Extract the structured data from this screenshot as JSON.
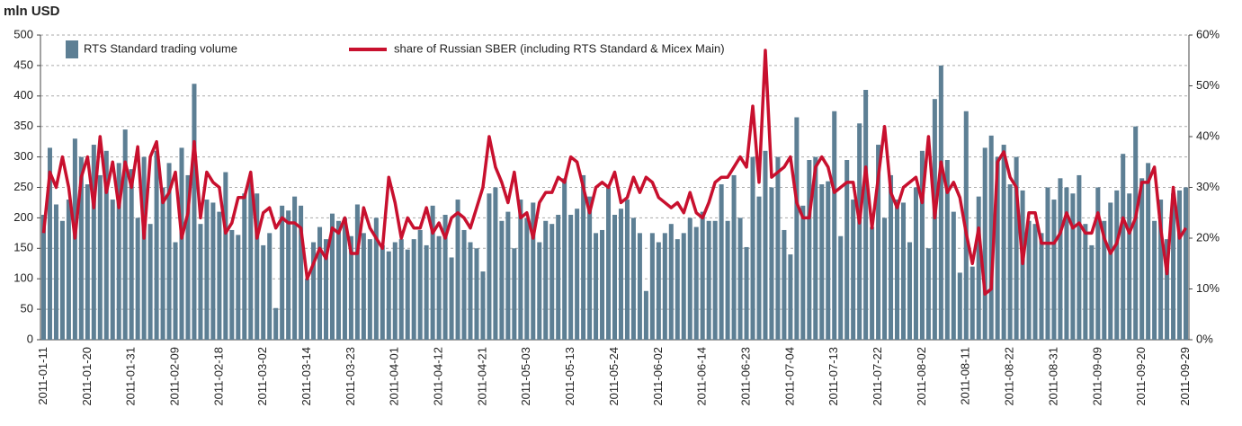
{
  "chart_data": {
    "type": "bar_line",
    "y_label": "mln USD",
    "categories": [
      "2011-01-11",
      null,
      null,
      null,
      null,
      null,
      null,
      "2011-01-20",
      null,
      null,
      null,
      null,
      null,
      null,
      "2011-01-31",
      null,
      null,
      null,
      null,
      null,
      null,
      "2011-02-09",
      null,
      null,
      null,
      null,
      null,
      null,
      "2011-02-18",
      null,
      null,
      null,
      null,
      null,
      null,
      "2011-03-02",
      null,
      null,
      null,
      null,
      null,
      null,
      "2011-03-14",
      null,
      null,
      null,
      null,
      null,
      null,
      "2011-03-23",
      null,
      null,
      null,
      null,
      null,
      null,
      "2011-04-01",
      null,
      null,
      null,
      null,
      null,
      null,
      "2011-04-12",
      null,
      null,
      null,
      null,
      null,
      null,
      "2011-04-21",
      null,
      null,
      null,
      null,
      null,
      null,
      "2011-05-03",
      null,
      null,
      null,
      null,
      null,
      null,
      "2011-05-13",
      null,
      null,
      null,
      null,
      null,
      null,
      "2011-05-24",
      null,
      null,
      null,
      null,
      null,
      null,
      "2011-06-02",
      null,
      null,
      null,
      null,
      null,
      null,
      "2011-06-14",
      null,
      null,
      null,
      null,
      null,
      null,
      "2011-06-23",
      null,
      null,
      null,
      null,
      null,
      null,
      "2011-07-04",
      null,
      null,
      null,
      null,
      null,
      null,
      "2011-07-13",
      null,
      null,
      null,
      null,
      null,
      null,
      "2011-07-22",
      null,
      null,
      null,
      null,
      null,
      null,
      "2011-08-02",
      null,
      null,
      null,
      null,
      null,
      null,
      "2011-08-11",
      null,
      null,
      null,
      null,
      null,
      null,
      "2011-08-22",
      null,
      null,
      null,
      null,
      null,
      null,
      "2011-08-31",
      null,
      null,
      null,
      null,
      null,
      null,
      "2011-09-09",
      null,
      null,
      null,
      null,
      null,
      null,
      "2011-09-20",
      null,
      null,
      null,
      null,
      null,
      null,
      "2011-09-29"
    ],
    "series": [
      {
        "name": "RTS Standard trading volume",
        "color": "#5d7f94",
        "type": "bar",
        "values": [
          205,
          315,
          222,
          195,
          230,
          330,
          300,
          255,
          320,
          270,
          310,
          230,
          290,
          345,
          280,
          200,
          300,
          190,
          310,
          250,
          290,
          160,
          315,
          270,
          420,
          190,
          230,
          225,
          210,
          275,
          180,
          172,
          240,
          262,
          240,
          155,
          175,
          52,
          220,
          212,
          235,
          220,
          100,
          160,
          185,
          165,
          207,
          195,
          200,
          170,
          222,
          175,
          165,
          200,
          155,
          145,
          160,
          165,
          148,
          165,
          180,
          155,
          220,
          170,
          205,
          135,
          230,
          180,
          160,
          150,
          112,
          240,
          250,
          195,
          210,
          150,
          230,
          200,
          225,
          160,
          195,
          190,
          205,
          265,
          205,
          215,
          270,
          235,
          175,
          180,
          250,
          205,
          215,
          230,
          200,
          175,
          80,
          175,
          160,
          175,
          190,
          165,
          175,
          200,
          185,
          210,
          195,
          195,
          255,
          195,
          270,
          200,
          152,
          300,
          235,
          310,
          250,
          300,
          180,
          140,
          365,
          220,
          295,
          300,
          255,
          260,
          375,
          170,
          295,
          230,
          355,
          410,
          185,
          320,
          200,
          270,
          230,
          225,
          160,
          250,
          310,
          150,
          395,
          450,
          295,
          210,
          110,
          375,
          120,
          235,
          315,
          335,
          300,
          320,
          255,
          300,
          245,
          195,
          190,
          175,
          250,
          230,
          265,
          250,
          240,
          270,
          190,
          155,
          250,
          195,
          225,
          245,
          305,
          240,
          350,
          265,
          290,
          195,
          230,
          165,
          240,
          245,
          250
        ]
      },
      {
        "name": "share of Russian SBER (including RTS Standard & Micex Main)",
        "color": "#c8102e",
        "type": "line",
        "axis": "y2",
        "values": [
          21,
          33,
          30,
          36,
          30,
          20,
          32,
          36,
          26,
          40,
          29,
          35,
          26,
          35,
          30,
          38,
          20,
          36,
          39,
          27,
          29,
          33,
          20,
          25,
          39,
          24,
          33,
          31,
          30,
          21,
          23,
          28,
          28,
          33,
          20,
          25,
          26,
          22,
          24,
          23,
          23,
          22,
          12,
          15,
          18,
          16,
          22,
          21,
          24,
          17,
          17,
          26,
          22,
          20,
          18,
          32,
          27,
          20,
          24,
          22,
          22,
          26,
          21,
          23,
          20,
          24,
          25,
          24,
          22,
          26,
          30,
          40,
          34,
          31,
          27,
          33,
          24,
          25,
          20,
          27,
          29,
          29,
          32,
          31,
          36,
          35,
          30,
          25,
          30,
          31,
          30,
          33,
          27,
          28,
          32,
          29,
          32,
          31,
          28,
          27,
          26,
          27,
          25,
          29,
          25,
          24,
          27,
          31,
          32,
          32,
          34,
          36,
          34,
          46,
          31,
          57,
          32,
          33,
          34,
          36,
          27,
          24,
          24,
          34,
          36,
          34,
          29,
          30,
          31,
          31,
          23,
          34,
          22,
          32,
          42,
          29,
          26,
          30,
          31,
          32,
          27,
          40,
          24,
          35,
          29,
          31,
          28,
          21,
          15,
          22,
          9,
          10,
          35,
          37,
          32,
          30,
          15,
          25,
          25,
          19,
          19,
          19,
          21,
          25,
          22,
          23,
          21,
          21,
          25,
          20,
          17,
          19,
          24,
          21,
          24,
          31,
          31,
          34,
          22,
          13,
          30,
          20,
          22
        ]
      }
    ],
    "ylim": [
      0,
      500
    ],
    "yticks": [
      0,
      50,
      100,
      150,
      200,
      250,
      300,
      350,
      400,
      450,
      500
    ],
    "y2lim": [
      0,
      60
    ],
    "y2ticks": [
      {
        "value": 0,
        "label": "0%"
      },
      {
        "value": 10,
        "label": "10%"
      },
      {
        "value": 20,
        "label": "20%"
      },
      {
        "value": 30,
        "label": "30%"
      },
      {
        "value": 40,
        "label": "40%"
      },
      {
        "value": 50,
        "label": "50%"
      },
      {
        "value": 60,
        "label": "60%"
      }
    ],
    "grid": true
  }
}
